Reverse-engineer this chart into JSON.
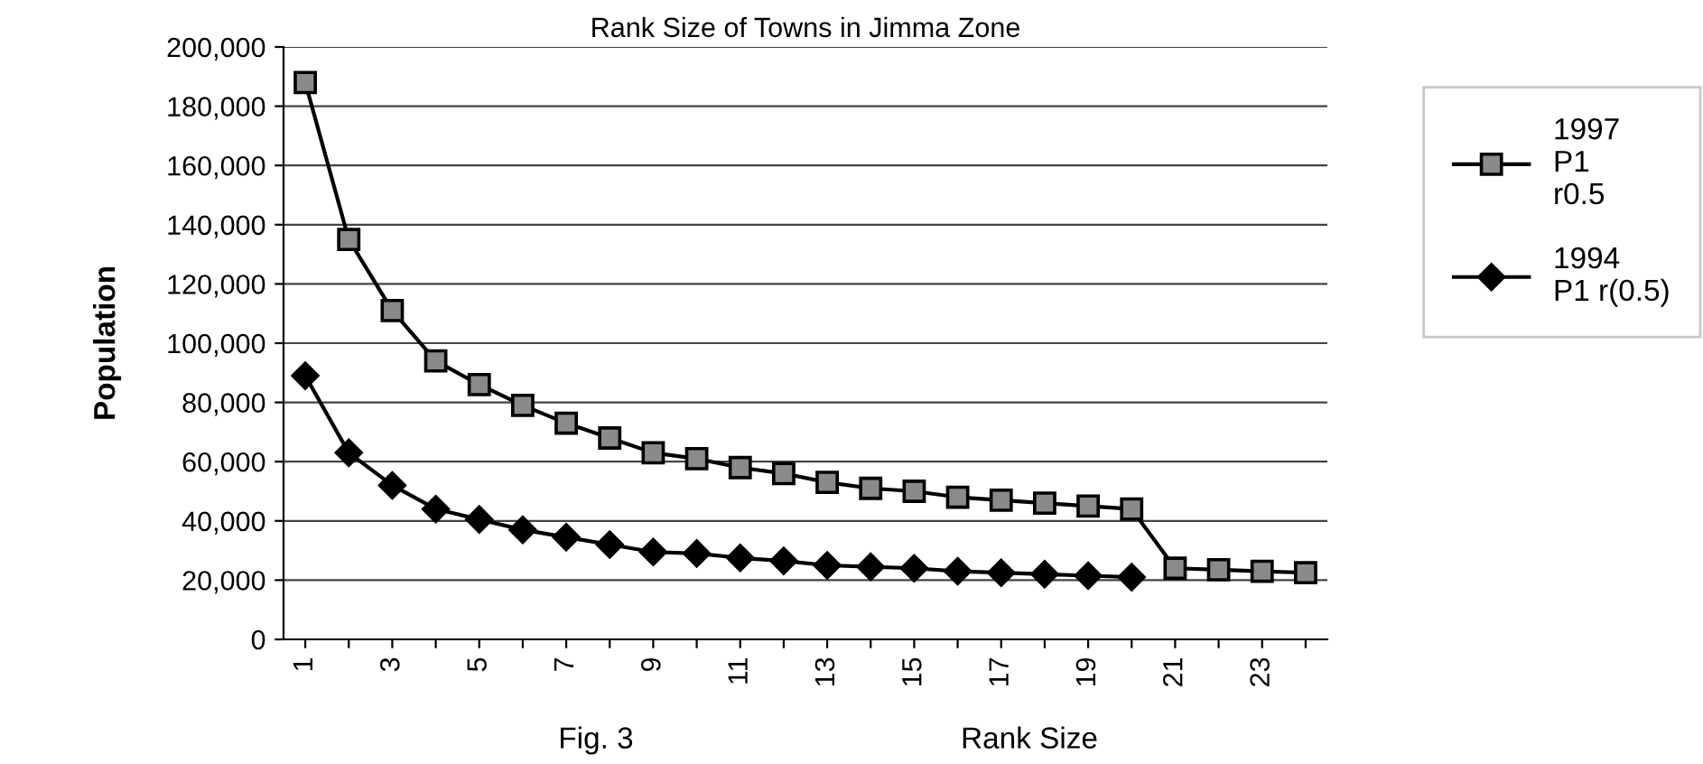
{
  "chart_data": {
    "type": "line",
    "title": "Rank Size of Towns in Jimma Zone",
    "xlabel": "Rank Size",
    "ylabel": "Population",
    "annotations": [
      "Fig. 3"
    ],
    "categories": [
      "1",
      null,
      "3",
      null,
      "5",
      null,
      "7",
      null,
      "9",
      null,
      "11",
      null,
      "13",
      null,
      "15",
      null,
      "17",
      null,
      "19",
      null,
      "21",
      null,
      "23",
      null
    ],
    "series": [
      {
        "name": "1997\nP1\nr0.5",
        "color": "#000000",
        "marker": "square",
        "values": [
          188000,
          135000,
          111000,
          94000,
          86000,
          79000,
          73000,
          68000,
          63000,
          61000,
          58000,
          56000,
          53000,
          51000,
          50000,
          48000,
          47000,
          46000,
          45000,
          44000,
          24000,
          23500,
          23000,
          22500
        ]
      },
      {
        "name": "1994\nP1 r(0.5)",
        "color": "#000000",
        "marker": "diamond",
        "values": [
          89000,
          63000,
          52000,
          44000,
          40500,
          37000,
          34500,
          32000,
          29500,
          29000,
          27500,
          26500,
          25000,
          24500,
          24000,
          23000,
          22500,
          22000,
          21500,
          21000,
          null,
          null,
          null,
          null
        ]
      }
    ],
    "ylim": [
      0,
      200000
    ],
    "yticks": [
      {
        "value": 0,
        "label": "0"
      },
      {
        "value": 20000,
        "label": "20,000"
      },
      {
        "value": 40000,
        "label": "40,000"
      },
      {
        "value": 60000,
        "label": "60,000"
      },
      {
        "value": 80000,
        "label": "80,000"
      },
      {
        "value": 100000,
        "label": "100,000"
      },
      {
        "value": 120000,
        "label": "120,000"
      },
      {
        "value": 140000,
        "label": "140,000"
      },
      {
        "value": 160000,
        "label": "160,000"
      },
      {
        "value": 180000,
        "label": "180,000"
      },
      {
        "value": 200000,
        "label": "200,000"
      }
    ],
    "grid": "y",
    "legend": "right"
  }
}
